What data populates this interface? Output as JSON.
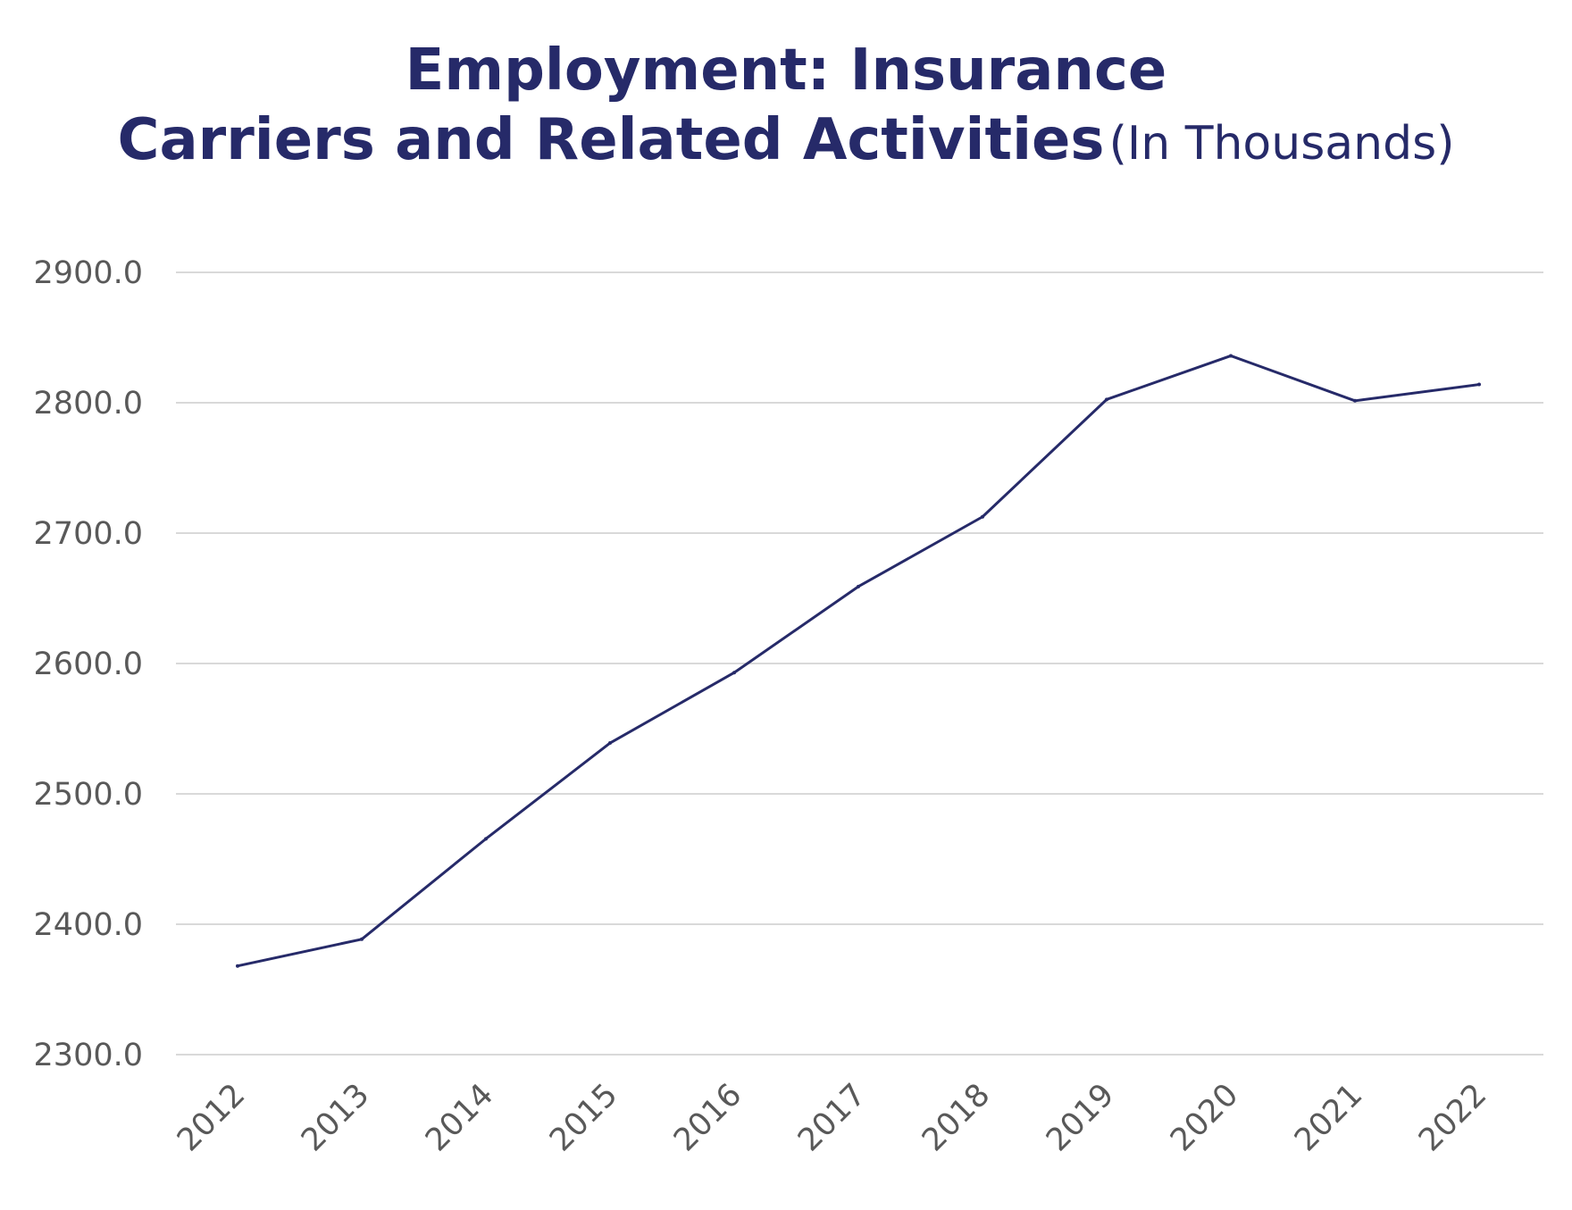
{
  "title": {
    "line1": "Employment: Insurance",
    "line2": "Carriers and Related Activities",
    "unit": "(In Thousands)"
  },
  "colors": {
    "series": "#262a69",
    "title": "#262a69",
    "grid": "#d9d9d9",
    "tick_text": "#595959"
  },
  "chart_data": {
    "type": "line",
    "title": "Employment: Insurance Carriers and Related Activities (In Thousands)",
    "xlabel": "",
    "ylabel": "",
    "categories": [
      "2012",
      "2013",
      "2014",
      "2015",
      "2016",
      "2017",
      "2018",
      "2019",
      "2020",
      "2021",
      "2022"
    ],
    "series": [
      {
        "values": [
          2368.0,
          2388.5,
          2465.5,
          2539.0,
          2593.0,
          2659.0,
          2712.5,
          2802.5,
          2836.0,
          2801.5,
          2814.0
        ]
      }
    ],
    "yticks": [
      "2300.0",
      "2400.0",
      "2500.0",
      "2600.0",
      "2700.0",
      "2800.0",
      "2900.0"
    ],
    "ylim": [
      2300,
      2900
    ],
    "grid": "horizontal",
    "legend": "none"
  }
}
